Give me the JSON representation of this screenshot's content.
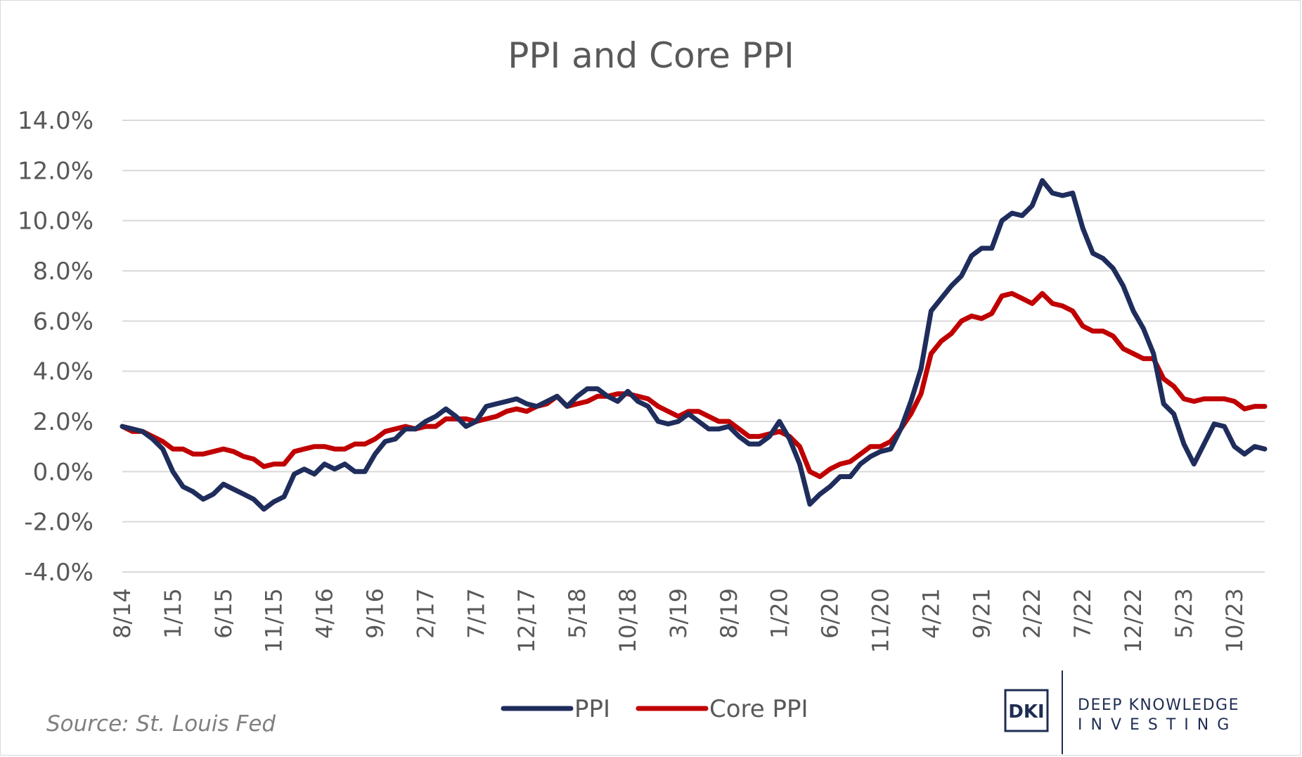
{
  "chart_data": {
    "type": "line",
    "title": "PPI and Core PPI",
    "source": "Source: St. Louis Fed",
    "xlabel": "",
    "ylabel": "",
    "ylim": [
      -4,
      14
    ],
    "yticks": [
      -4,
      -2,
      0,
      2,
      4,
      6,
      8,
      10,
      12,
      14
    ],
    "ytick_labels": [
      "-4.0%",
      "-2.0%",
      "0.0%",
      "2.0%",
      "4.0%",
      "6.0%",
      "8.0%",
      "10.0%",
      "12.0%",
      "14.0%"
    ],
    "grid": true,
    "legend_position": "bottom-center",
    "x_labels": [
      "8/14",
      "9/14",
      "10/14",
      "11/14",
      "12/14",
      "1/15",
      "2/15",
      "3/15",
      "4/15",
      "5/15",
      "6/15",
      "7/15",
      "8/15",
      "9/15",
      "10/15",
      "11/15",
      "12/15",
      "1/16",
      "2/16",
      "3/16",
      "4/16",
      "5/16",
      "6/16",
      "7/16",
      "8/16",
      "9/16",
      "10/16",
      "11/16",
      "12/16",
      "1/17",
      "2/17",
      "3/17",
      "4/17",
      "5/17",
      "6/17",
      "7/17",
      "8/17",
      "9/17",
      "10/17",
      "11/17",
      "12/17",
      "1/18",
      "2/18",
      "3/18",
      "4/18",
      "5/18",
      "6/18",
      "7/18",
      "8/18",
      "9/18",
      "10/18",
      "11/18",
      "12/18",
      "1/19",
      "2/19",
      "3/19",
      "4/19",
      "5/19",
      "6/19",
      "7/19",
      "8/19",
      "9/19",
      "10/19",
      "11/19",
      "12/19",
      "1/20",
      "2/20",
      "3/20",
      "4/20",
      "5/20",
      "6/20",
      "7/20",
      "8/20",
      "9/20",
      "10/20",
      "11/20",
      "12/20",
      "1/21",
      "2/21",
      "3/21",
      "4/21",
      "5/21",
      "6/21",
      "7/21",
      "8/21",
      "9/21",
      "10/21",
      "11/21",
      "12/21",
      "1/22",
      "2/22",
      "3/22",
      "4/22",
      "5/22",
      "6/22",
      "7/22",
      "8/22",
      "9/22",
      "10/22",
      "11/22",
      "12/22",
      "1/23",
      "2/23",
      "3/23",
      "4/23",
      "5/23",
      "6/23",
      "7/23",
      "8/23",
      "9/23",
      "10/23",
      "11/23",
      "12/23",
      "1/24"
    ],
    "tick_labels": [
      "8/14",
      "1/15",
      "6/15",
      "11/15",
      "4/16",
      "9/16",
      "2/17",
      "7/17",
      "12/17",
      "5/18",
      "10/18",
      "3/19",
      "8/19",
      "1/20",
      "6/20",
      "11/20",
      "4/21",
      "9/21",
      "2/22",
      "7/22",
      "12/22",
      "5/23",
      "10/23"
    ],
    "series": [
      {
        "name": "PPI",
        "color": "#1f2d5c",
        "values": [
          1.8,
          1.7,
          1.6,
          1.3,
          0.9,
          0.0,
          -0.6,
          -0.8,
          -1.1,
          -0.9,
          -0.5,
          -0.7,
          -0.9,
          -1.1,
          -1.5,
          -1.2,
          -1.0,
          -0.1,
          0.1,
          -0.1,
          0.3,
          0.1,
          0.3,
          0.0,
          0.0,
          0.7,
          1.2,
          1.3,
          1.7,
          1.7,
          2.0,
          2.2,
          2.5,
          2.2,
          1.8,
          2.0,
          2.6,
          2.7,
          2.8,
          2.9,
          2.7,
          2.6,
          2.8,
          3.0,
          2.6,
          3.0,
          3.3,
          3.3,
          3.0,
          2.8,
          3.2,
          2.8,
          2.6,
          2.0,
          1.9,
          2.0,
          2.3,
          2.0,
          1.7,
          1.7,
          1.8,
          1.4,
          1.1,
          1.1,
          1.4,
          2.0,
          1.3,
          0.3,
          -1.3,
          -0.9,
          -0.6,
          -0.2,
          -0.2,
          0.3,
          0.6,
          0.8,
          0.9,
          1.7,
          2.8,
          4.1,
          6.4,
          6.9,
          7.4,
          7.8,
          8.6,
          8.9,
          8.9,
          10.0,
          10.3,
          10.2,
          10.6,
          11.6,
          11.1,
          11.0,
          11.1,
          9.7,
          8.7,
          8.5,
          8.1,
          7.4,
          6.4,
          5.7,
          4.7,
          2.7,
          2.3,
          1.1,
          0.3,
          1.1,
          1.9,
          1.8,
          1.0,
          0.7,
          1.0,
          0.9
        ]
      },
      {
        "name": "Core PPI",
        "color": "#c00000",
        "values": [
          1.8,
          1.6,
          1.6,
          1.4,
          1.2,
          0.9,
          0.9,
          0.7,
          0.7,
          0.8,
          0.9,
          0.8,
          0.6,
          0.5,
          0.2,
          0.3,
          0.3,
          0.8,
          0.9,
          1.0,
          1.0,
          0.9,
          0.9,
          1.1,
          1.1,
          1.3,
          1.6,
          1.7,
          1.8,
          1.7,
          1.8,
          1.8,
          2.1,
          2.1,
          2.1,
          2.0,
          2.1,
          2.2,
          2.4,
          2.5,
          2.4,
          2.6,
          2.7,
          3.0,
          2.6,
          2.7,
          2.8,
          3.0,
          3.0,
          3.1,
          3.1,
          3.0,
          2.9,
          2.6,
          2.4,
          2.2,
          2.4,
          2.4,
          2.2,
          2.0,
          2.0,
          1.7,
          1.4,
          1.4,
          1.5,
          1.6,
          1.4,
          1.0,
          0.0,
          -0.2,
          0.1,
          0.3,
          0.4,
          0.7,
          1.0,
          1.0,
          1.2,
          1.7,
          2.3,
          3.1,
          4.7,
          5.2,
          5.5,
          6.0,
          6.2,
          6.1,
          6.3,
          7.0,
          7.1,
          6.9,
          6.7,
          7.1,
          6.7,
          6.6,
          6.4,
          5.8,
          5.6,
          5.6,
          5.4,
          4.9,
          4.7,
          4.5,
          4.5,
          3.7,
          3.4,
          2.9,
          2.8,
          2.9,
          2.9,
          2.9,
          2.8,
          2.5,
          2.6,
          2.6
        ]
      }
    ]
  },
  "logo": {
    "mark": "DKI",
    "line1": "DEEP KNOWLEDGE",
    "line2": "INVESTING"
  }
}
